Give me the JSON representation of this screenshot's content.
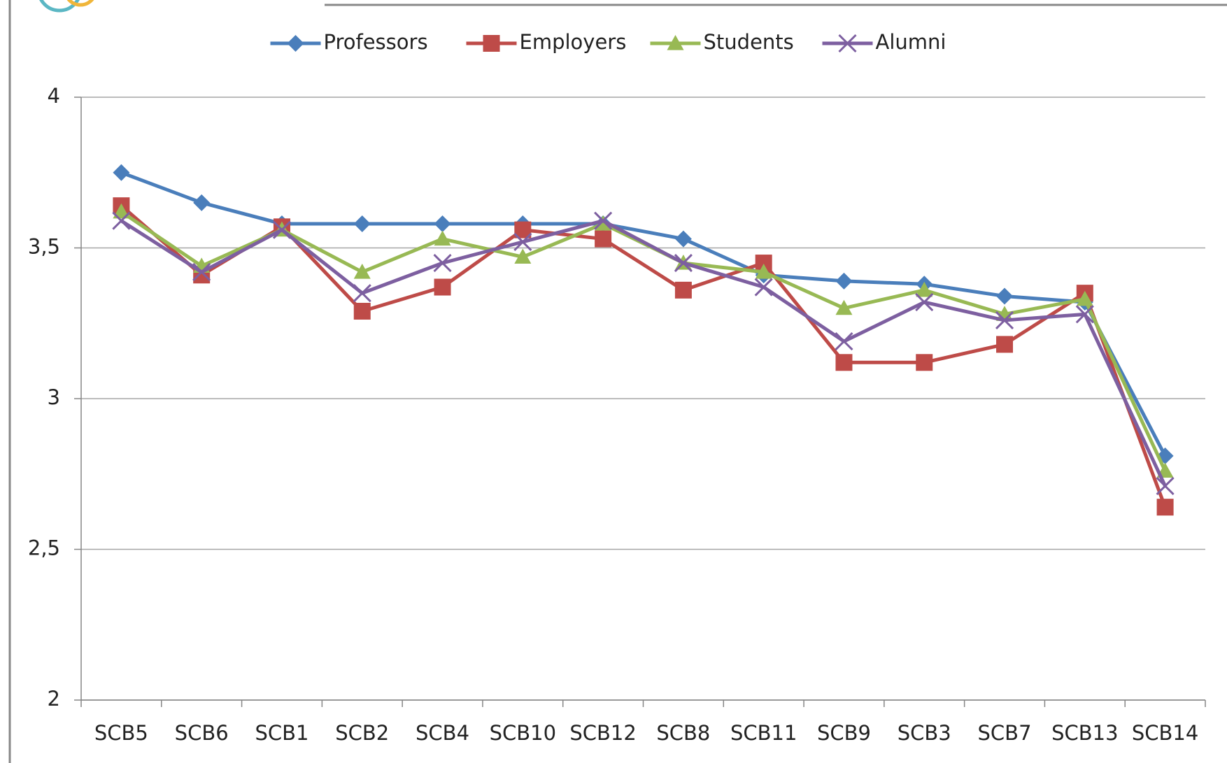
{
  "chart_data": {
    "type": "line",
    "categories": [
      "SCB5",
      "SCB6",
      "SCB1",
      "SCB2",
      "SCB4",
      "SCB10",
      "SCB12",
      "SCB8",
      "SCB11",
      "SCB9",
      "SCB3",
      "SCB7",
      "SCB13",
      "SCB14"
    ],
    "series": [
      {
        "name": "Professors",
        "color": "#4a7ebb",
        "marker": "diamond",
        "values": [
          3.75,
          3.65,
          3.58,
          3.58,
          3.58,
          3.58,
          3.58,
          3.53,
          3.41,
          3.39,
          3.38,
          3.34,
          3.32,
          2.81
        ]
      },
      {
        "name": "Employers",
        "color": "#be4b48",
        "marker": "square",
        "values": [
          3.64,
          3.41,
          3.57,
          3.29,
          3.37,
          3.56,
          3.53,
          3.36,
          3.45,
          3.12,
          3.12,
          3.18,
          3.35,
          2.64
        ]
      },
      {
        "name": "Students",
        "color": "#98b954",
        "marker": "triangle",
        "values": [
          3.62,
          3.44,
          3.56,
          3.42,
          3.53,
          3.47,
          3.58,
          3.45,
          3.42,
          3.3,
          3.36,
          3.28,
          3.33,
          2.76
        ]
      },
      {
        "name": "Alumni",
        "color": "#7d5fa0",
        "marker": "x",
        "values": [
          3.59,
          3.42,
          3.56,
          3.35,
          3.45,
          3.52,
          3.59,
          3.45,
          3.37,
          3.19,
          3.32,
          3.26,
          3.28,
          2.71
        ]
      }
    ],
    "ylim": [
      2,
      4
    ],
    "yticks": [
      2,
      {
        "value": 2.5,
        "label": "2,5"
      },
      3,
      {
        "value": 3.5,
        "label": "3,5"
      },
      4
    ],
    "grid": true,
    "legend": "top"
  }
}
